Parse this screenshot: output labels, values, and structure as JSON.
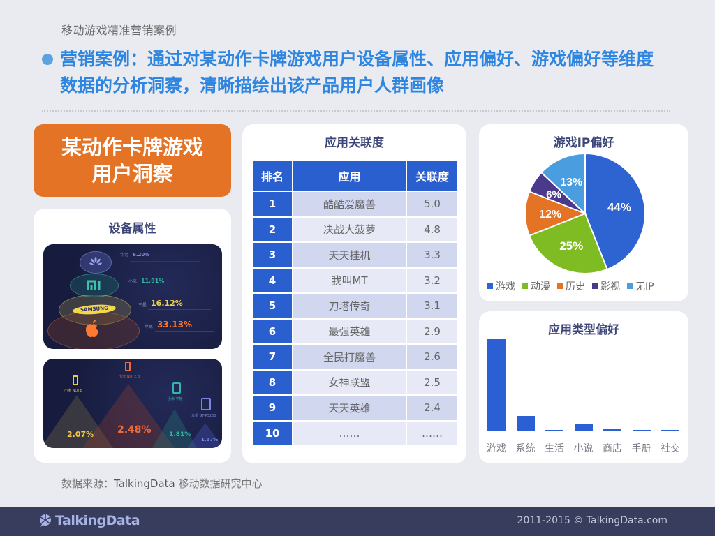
{
  "header": {
    "breadcrumb": "移动游戏精准营销案例",
    "headline": "营销案例：通过对某动作卡牌游戏用户设备属性、应用偏好、游戏偏好等维度数据的分析洞察，清晰描绘出该产品用户人群画像"
  },
  "banner": {
    "line1": "某动作卡牌游戏",
    "line2": "用户洞察"
  },
  "device": {
    "title": "设备属性",
    "brands": [
      {
        "name": "华为",
        "icon": "huawei-logo",
        "pct": "6.20%",
        "color": "#8a8fe0"
      },
      {
        "name": "小米",
        "icon": "xiaomi-logo",
        "pct": "11.91%",
        "color": "#37b3a0"
      },
      {
        "name": "三星",
        "icon": "samsung-logo",
        "pct": "16.12%",
        "color": "#f2d24a"
      },
      {
        "name": "苹果",
        "icon": "apple-logo",
        "pct": "33.13%",
        "color": "#ff7a30"
      }
    ],
    "models": [
      {
        "name": "小米 NOTE",
        "pct": "2.07%",
        "color": "#f2c844",
        "icon": "phone-icon"
      },
      {
        "name": "小米 NOTE 3",
        "pct": "2.48%",
        "color": "#ef6a3a",
        "icon": "phone-icon"
      },
      {
        "name": "小米 平板",
        "pct": "1.81%",
        "color": "#33b6a6",
        "icon": "tablet-icon"
      },
      {
        "name": "三星 GT-P5200",
        "pct": "1.17%",
        "color": "#6f7ad6",
        "icon": "tablet-icon"
      }
    ]
  },
  "assoc_table": {
    "title": "应用关联度",
    "headers": [
      "排名",
      "应用",
      "关联度"
    ],
    "rows": [
      {
        "rank": "1",
        "app": "酷酷爱魔兽",
        "score": "5.0"
      },
      {
        "rank": "2",
        "app": "决战大菠萝",
        "score": "4.8"
      },
      {
        "rank": "3",
        "app": "天天挂机",
        "score": "3.3"
      },
      {
        "rank": "4",
        "app": "我叫MT",
        "score": "3.2"
      },
      {
        "rank": "5",
        "app": "刀塔传奇",
        "score": "3.1"
      },
      {
        "rank": "6",
        "app": "最强英雄",
        "score": "2.9"
      },
      {
        "rank": "7",
        "app": "全民打魔兽",
        "score": "2.6"
      },
      {
        "rank": "8",
        "app": "女神联盟",
        "score": "2.5"
      },
      {
        "rank": "9",
        "app": "天天英雄",
        "score": "2.4"
      },
      {
        "rank": "10",
        "app": "……",
        "score": "……"
      }
    ]
  },
  "chart_data": [
    {
      "type": "pie",
      "title": "游戏IP偏好",
      "categories": [
        "游戏",
        "动漫",
        "历史",
        "影视",
        "无IP"
      ],
      "values": [
        44,
        25,
        12,
        6,
        13
      ],
      "labels": [
        "44%",
        "25%",
        "12%",
        "6%",
        "13%"
      ],
      "colors": [
        "#2e63d2",
        "#7fbb22",
        "#e57325",
        "#4b3a8c",
        "#4a9ee0"
      ],
      "legend_position": "bottom"
    },
    {
      "type": "bar",
      "title": "应用类型偏好",
      "categories": [
        "游戏",
        "系统",
        "生活",
        "小说",
        "商店",
        "手册",
        "社交"
      ],
      "values": [
        100,
        17,
        1.5,
        8.5,
        3,
        1.5,
        1.5
      ],
      "xlabel": "",
      "ylabel": "",
      "ylim": [
        0,
        100
      ],
      "grid": false,
      "color": "#2d5fd4"
    }
  ],
  "source": {
    "prefix": "数据来源：",
    "brand": "TalkingData",
    "suffix": " 移动数据研究中心"
  },
  "footer": {
    "logo_text": "TalkingData",
    "copyright": "2011-2015 © TalkingData.com"
  }
}
